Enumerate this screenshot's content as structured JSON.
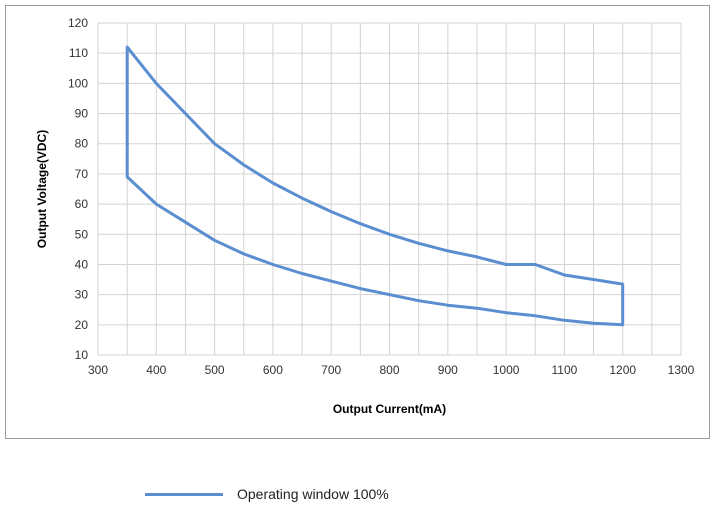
{
  "chart_data": {
    "type": "line",
    "xlabel": "Output Current(mA)",
    "ylabel": "Output Voltage(VDC)",
    "xlim": [
      300,
      1300
    ],
    "ylim": [
      10,
      120
    ],
    "x_ticks": [
      "300",
      "400",
      "500",
      "600",
      "700",
      "800",
      "900",
      "1000",
      "1100",
      "1200",
      "1300"
    ],
    "y_ticks": [
      "10",
      "20",
      "30",
      "40",
      "50",
      "60",
      "70",
      "80",
      "90",
      "100",
      "110",
      "120"
    ],
    "grid": true,
    "legend_position": "bottom-left",
    "series": [
      {
        "name": "Operating window 100%",
        "color": "#5b8ed0",
        "closed": true,
        "points": [
          [
            350,
            112
          ],
          [
            400,
            100
          ],
          [
            450,
            90
          ],
          [
            500,
            80
          ],
          [
            550,
            73
          ],
          [
            600,
            67
          ],
          [
            650,
            62
          ],
          [
            700,
            57.5
          ],
          [
            750,
            53.5
          ],
          [
            800,
            50
          ],
          [
            850,
            47
          ],
          [
            900,
            44.5
          ],
          [
            950,
            42.5
          ],
          [
            1000,
            40
          ],
          [
            1050,
            40
          ],
          [
            1100,
            36.5
          ],
          [
            1150,
            35
          ],
          [
            1200,
            33.5
          ],
          [
            1200,
            20
          ],
          [
            1150,
            20.5
          ],
          [
            1100,
            21.5
          ],
          [
            1050,
            23
          ],
          [
            1000,
            24
          ],
          [
            950,
            25.5
          ],
          [
            900,
            26.5
          ],
          [
            850,
            28
          ],
          [
            800,
            30
          ],
          [
            750,
            32
          ],
          [
            700,
            34.5
          ],
          [
            650,
            37
          ],
          [
            600,
            40
          ],
          [
            550,
            43.5
          ],
          [
            500,
            48
          ],
          [
            450,
            54
          ],
          [
            400,
            60
          ],
          [
            350,
            69
          ]
        ]
      }
    ]
  }
}
